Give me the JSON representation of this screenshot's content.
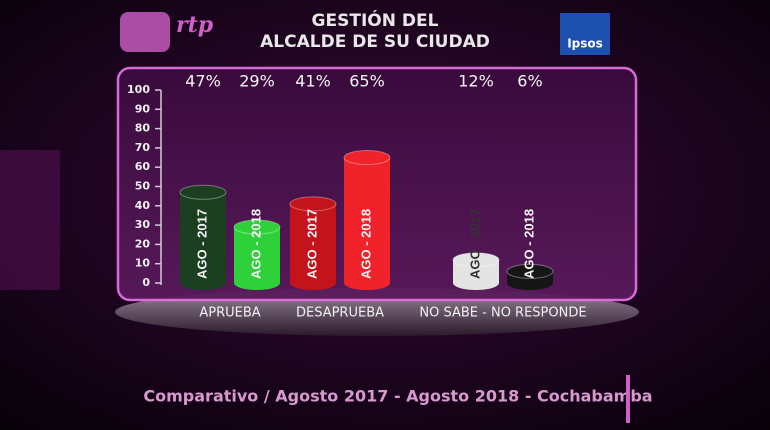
{
  "chart_data": {
    "type": "bar",
    "title": [
      "GESTIÓN DEL",
      "ALCALDE DE SU CIUDAD"
    ],
    "categories": [
      "APRUEBA",
      "DESAPRUEBA",
      "NO SABE - NO RESPONDE"
    ],
    "series": [
      {
        "name": "AGO - 2017",
        "colors": [
          "#1c3f22",
          "#c4141b",
          "#e4e4e4"
        ],
        "values": [
          47,
          41,
          12
        ],
        "value_labels": [
          "47%",
          "41%",
          "12%"
        ]
      },
      {
        "name": "AGO - 2018",
        "colors": [
          "#2fd13a",
          "#f0232a",
          "#161616"
        ],
        "values": [
          29,
          65,
          6
        ],
        "value_labels": [
          "29%",
          "65%",
          "6%"
        ]
      }
    ],
    "ylim": [
      0,
      100
    ],
    "yticks": [
      0,
      10,
      20,
      30,
      40,
      50,
      60,
      70,
      80,
      90,
      100
    ],
    "caption": "Comparativo / Agosto 2017 - Agosto 2018 - Cochabamba"
  },
  "logos": [
    "rtp",
    "Ipsos"
  ]
}
